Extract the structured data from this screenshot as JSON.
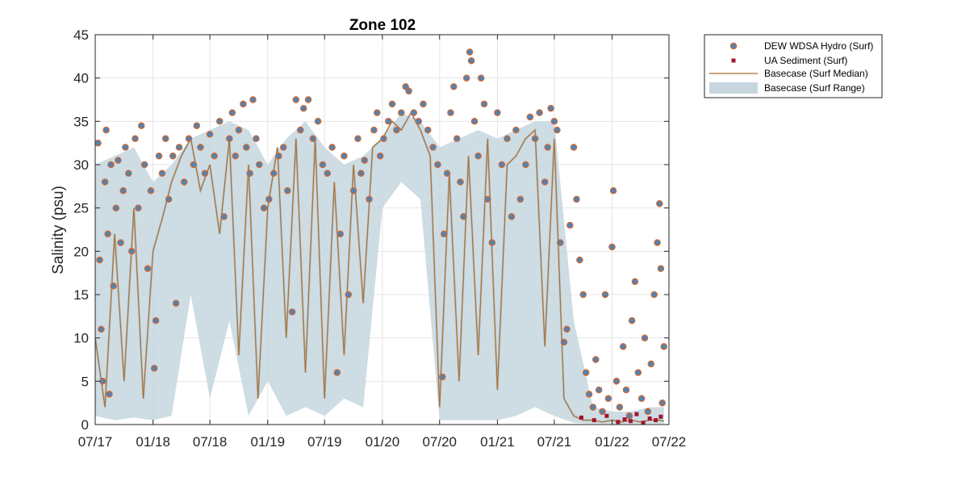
{
  "chart_data": {
    "type": "scatter",
    "title": "Zone 102",
    "xlabel": "",
    "ylabel": "Salinity (psu)",
    "xlim": [
      "2017-07-01",
      "2022-07-01"
    ],
    "ylim": [
      0,
      45
    ],
    "x_ticks": [
      "07/17",
      "01/18",
      "07/18",
      "01/19",
      "07/19",
      "01/20",
      "07/20",
      "01/21",
      "07/21",
      "01/22",
      "07/22"
    ],
    "y_ticks": [
      0,
      5,
      10,
      15,
      20,
      25,
      30,
      35,
      40,
      45
    ],
    "grid": true,
    "legend_position": "outside-top-right",
    "legend": [
      {
        "label": "DEW WDSA Hydro (Surf)",
        "marker": "circle"
      },
      {
        "label": "UA Sediment (Surf)",
        "marker": "square"
      },
      {
        "label": "Basecase (Surf Median)",
        "marker": "line"
      },
      {
        "label": "Basecase (Surf Range)",
        "marker": "patch"
      }
    ],
    "colors": {
      "hydro_face": "#4d84b8",
      "hydro_edge": "#d0672f",
      "sediment": "#a2142f",
      "median": "#a66e2c",
      "range_fill": "#c5d6de",
      "range_gray": "#a7a19b",
      "grid": "#e4e4e4",
      "axes": "#262626"
    },
    "series": [
      {
        "name": "DEW WDSA Hydro (Surf)",
        "style": "scatter",
        "points": [
          [
            "2017-07-10",
            32.5
          ],
          [
            "2017-07-15",
            19
          ],
          [
            "2017-07-20",
            11
          ],
          [
            "2017-07-25",
            5
          ],
          [
            "2017-08-01",
            28
          ],
          [
            "2017-08-05",
            34
          ],
          [
            "2017-08-10",
            22
          ],
          [
            "2017-08-15",
            3.5
          ],
          [
            "2017-08-20",
            30
          ],
          [
            "2017-08-28",
            16
          ],
          [
            "2017-09-05",
            25
          ],
          [
            "2017-09-12",
            30.5
          ],
          [
            "2017-09-20",
            21
          ],
          [
            "2017-09-28",
            27
          ],
          [
            "2017-10-05",
            32
          ],
          [
            "2017-10-15",
            29
          ],
          [
            "2017-10-25",
            20
          ],
          [
            "2017-11-05",
            33
          ],
          [
            "2017-11-15",
            25
          ],
          [
            "2017-11-25",
            34.5
          ],
          [
            "2017-12-05",
            30
          ],
          [
            "2017-12-15",
            18
          ],
          [
            "2017-12-25",
            27
          ],
          [
            "2018-01-05",
            6.5
          ],
          [
            "2018-01-10",
            12
          ],
          [
            "2018-01-20",
            31
          ],
          [
            "2018-01-30",
            29
          ],
          [
            "2018-02-10",
            33
          ],
          [
            "2018-02-20",
            26
          ],
          [
            "2018-03-05",
            31
          ],
          [
            "2018-03-15",
            14
          ],
          [
            "2018-03-25",
            32
          ],
          [
            "2018-04-10",
            28
          ],
          [
            "2018-04-25",
            33
          ],
          [
            "2018-05-10",
            30
          ],
          [
            "2018-05-20",
            34.5
          ],
          [
            "2018-06-01",
            32
          ],
          [
            "2018-06-15",
            29
          ],
          [
            "2018-07-01",
            33.5
          ],
          [
            "2018-07-15",
            31
          ],
          [
            "2018-08-01",
            35
          ],
          [
            "2018-08-15",
            24
          ],
          [
            "2018-09-01",
            33
          ],
          [
            "2018-09-10",
            36
          ],
          [
            "2018-09-20",
            31
          ],
          [
            "2018-10-01",
            34
          ],
          [
            "2018-10-15",
            37
          ],
          [
            "2018-10-25",
            32
          ],
          [
            "2018-11-05",
            29
          ],
          [
            "2018-11-15",
            37.5
          ],
          [
            "2018-11-25",
            33
          ],
          [
            "2018-12-05",
            30
          ],
          [
            "2018-12-20",
            25
          ],
          [
            "2019-01-05",
            26
          ],
          [
            "2019-01-20",
            29
          ],
          [
            "2019-02-05",
            31
          ],
          [
            "2019-02-20",
            32
          ],
          [
            "2019-03-05",
            27
          ],
          [
            "2019-03-20",
            13
          ],
          [
            "2019-04-01",
            37.5
          ],
          [
            "2019-04-15",
            34
          ],
          [
            "2019-04-25",
            36.5
          ],
          [
            "2019-05-10",
            37.5
          ],
          [
            "2019-05-25",
            33
          ],
          [
            "2019-06-10",
            35
          ],
          [
            "2019-06-25",
            30
          ],
          [
            "2019-07-10",
            29
          ],
          [
            "2019-07-25",
            32
          ],
          [
            "2019-08-10",
            6
          ],
          [
            "2019-08-20",
            22
          ],
          [
            "2019-09-01",
            31
          ],
          [
            "2019-09-15",
            15
          ],
          [
            "2019-10-01",
            27
          ],
          [
            "2019-10-15",
            33
          ],
          [
            "2019-10-25",
            29
          ],
          [
            "2019-11-05",
            30.5
          ],
          [
            "2019-11-20",
            26
          ],
          [
            "2019-12-05",
            34
          ],
          [
            "2019-12-15",
            36
          ],
          [
            "2019-12-25",
            31
          ],
          [
            "2020-01-05",
            33
          ],
          [
            "2020-01-20",
            35
          ],
          [
            "2020-02-01",
            37
          ],
          [
            "2020-02-15",
            34
          ],
          [
            "2020-03-01",
            36
          ],
          [
            "2020-03-15",
            39
          ],
          [
            "2020-03-25",
            38.5
          ],
          [
            "2020-04-10",
            36
          ],
          [
            "2020-04-25",
            35
          ],
          [
            "2020-05-10",
            37
          ],
          [
            "2020-05-25",
            34
          ],
          [
            "2020-06-10",
            32
          ],
          [
            "2020-06-25",
            30
          ],
          [
            "2020-07-10",
            5.5
          ],
          [
            "2020-07-15",
            22
          ],
          [
            "2020-07-25",
            29
          ],
          [
            "2020-08-05",
            36
          ],
          [
            "2020-08-15",
            39
          ],
          [
            "2020-08-25",
            33
          ],
          [
            "2020-09-05",
            28
          ],
          [
            "2020-09-15",
            24
          ],
          [
            "2020-09-25",
            40
          ],
          [
            "2020-10-05",
            43
          ],
          [
            "2020-10-10",
            42
          ],
          [
            "2020-10-20",
            35
          ],
          [
            "2020-11-01",
            31
          ],
          [
            "2020-11-10",
            40
          ],
          [
            "2020-11-20",
            37
          ],
          [
            "2020-12-01",
            26
          ],
          [
            "2020-12-15",
            21
          ],
          [
            "2021-01-01",
            36
          ],
          [
            "2021-01-15",
            30
          ],
          [
            "2021-02-01",
            33
          ],
          [
            "2021-02-15",
            24
          ],
          [
            "2021-03-01",
            34
          ],
          [
            "2021-03-15",
            26
          ],
          [
            "2021-04-01",
            30
          ],
          [
            "2021-04-15",
            35.5
          ],
          [
            "2021-05-01",
            33
          ],
          [
            "2021-05-15",
            36
          ],
          [
            "2021-06-01",
            28
          ],
          [
            "2021-06-10",
            32
          ],
          [
            "2021-06-20",
            36.5
          ],
          [
            "2021-07-01",
            35
          ],
          [
            "2021-07-10",
            34
          ],
          [
            "2021-07-20",
            21
          ],
          [
            "2021-08-01",
            9.5
          ],
          [
            "2021-08-10",
            11
          ],
          [
            "2021-08-20",
            23
          ],
          [
            "2021-09-01",
            32
          ],
          [
            "2021-09-10",
            26
          ],
          [
            "2021-09-20",
            19
          ],
          [
            "2021-10-01",
            15
          ],
          [
            "2021-10-10",
            6
          ],
          [
            "2021-10-20",
            3.5
          ],
          [
            "2021-11-01",
            2
          ],
          [
            "2021-11-10",
            7.5
          ],
          [
            "2021-11-20",
            4
          ],
          [
            "2021-12-01",
            1.5
          ],
          [
            "2021-12-10",
            15
          ],
          [
            "2021-12-20",
            3
          ],
          [
            "2022-01-01",
            20.5
          ],
          [
            "2022-01-05",
            27
          ],
          [
            "2022-01-15",
            5
          ],
          [
            "2022-01-25",
            2
          ],
          [
            "2022-02-05",
            9
          ],
          [
            "2022-02-15",
            4
          ],
          [
            "2022-02-25",
            1
          ],
          [
            "2022-03-05",
            12
          ],
          [
            "2022-03-15",
            16.5
          ],
          [
            "2022-03-25",
            6
          ],
          [
            "2022-04-05",
            3
          ],
          [
            "2022-04-15",
            10
          ],
          [
            "2022-04-25",
            1.5
          ],
          [
            "2022-05-05",
            7
          ],
          [
            "2022-05-15",
            15
          ],
          [
            "2022-05-25",
            21
          ],
          [
            "2022-06-01",
            25.5
          ],
          [
            "2022-06-05",
            18
          ],
          [
            "2022-06-10",
            2.5
          ],
          [
            "2022-06-15",
            9
          ]
        ]
      },
      {
        "name": "UA Sediment (Surf)",
        "style": "scatter",
        "points": [
          [
            "2021-09-25",
            0.8
          ],
          [
            "2021-11-05",
            0.5
          ],
          [
            "2021-12-15",
            1.0
          ],
          [
            "2022-01-20",
            0.3
          ],
          [
            "2022-02-10",
            0.6
          ],
          [
            "2022-03-01",
            0.4
          ],
          [
            "2022-03-20",
            1.2
          ],
          [
            "2022-04-10",
            0.2
          ],
          [
            "2022-05-01",
            0.7
          ],
          [
            "2022-05-20",
            0.5
          ],
          [
            "2022-06-05",
            0.9
          ]
        ]
      },
      {
        "name": "Basecase (Surf Median)",
        "style": "line",
        "points": [
          [
            "2017-07-01",
            10
          ],
          [
            "2017-08-01",
            2
          ],
          [
            "2017-09-01",
            22
          ],
          [
            "2017-10-01",
            5
          ],
          [
            "2017-11-01",
            25
          ],
          [
            "2017-12-01",
            3
          ],
          [
            "2018-01-01",
            20
          ],
          [
            "2018-02-01",
            24
          ],
          [
            "2018-03-01",
            28
          ],
          [
            "2018-04-01",
            31
          ],
          [
            "2018-05-01",
            33
          ],
          [
            "2018-06-01",
            27
          ],
          [
            "2018-07-01",
            30
          ],
          [
            "2018-08-01",
            22
          ],
          [
            "2018-09-01",
            33
          ],
          [
            "2018-10-01",
            8
          ],
          [
            "2018-11-01",
            30
          ],
          [
            "2018-12-01",
            3
          ],
          [
            "2019-01-01",
            25
          ],
          [
            "2019-02-01",
            32
          ],
          [
            "2019-03-01",
            10
          ],
          [
            "2019-04-01",
            33
          ],
          [
            "2019-05-01",
            6
          ],
          [
            "2019-06-01",
            33
          ],
          [
            "2019-07-01",
            3
          ],
          [
            "2019-08-01",
            28
          ],
          [
            "2019-09-01",
            8
          ],
          [
            "2019-10-01",
            30
          ],
          [
            "2019-11-01",
            14
          ],
          [
            "2019-12-01",
            32
          ],
          [
            "2020-01-01",
            33
          ],
          [
            "2020-02-01",
            35
          ],
          [
            "2020-03-01",
            34
          ],
          [
            "2020-04-01",
            36
          ],
          [
            "2020-05-01",
            34
          ],
          [
            "2020-06-01",
            31
          ],
          [
            "2020-07-01",
            2
          ],
          [
            "2020-08-01",
            29
          ],
          [
            "2020-09-01",
            5
          ],
          [
            "2020-10-01",
            31
          ],
          [
            "2020-11-01",
            8
          ],
          [
            "2020-12-01",
            33
          ],
          [
            "2021-01-01",
            4
          ],
          [
            "2021-02-01",
            30
          ],
          [
            "2021-03-01",
            31
          ],
          [
            "2021-04-01",
            33
          ],
          [
            "2021-05-01",
            34
          ],
          [
            "2021-06-01",
            9
          ],
          [
            "2021-07-01",
            33
          ],
          [
            "2021-08-01",
            3
          ],
          [
            "2021-09-01",
            1
          ],
          [
            "2021-10-01",
            0.5
          ],
          [
            "2021-11-01",
            0.5
          ],
          [
            "2021-12-01",
            0.3
          ],
          [
            "2022-01-01",
            0.5
          ],
          [
            "2022-02-01",
            0.3
          ],
          [
            "2022-03-01",
            0.5
          ],
          [
            "2022-04-01",
            0.3
          ],
          [
            "2022-05-01",
            0.5
          ],
          [
            "2022-06-01",
            0.5
          ],
          [
            "2022-06-15",
            0.4
          ]
        ]
      },
      {
        "name": "Basecase (Surf Range)",
        "style": "band",
        "x": [
          "2017-07-01",
          "2017-09-01",
          "2017-11-01",
          "2018-01-01",
          "2018-03-01",
          "2018-05-01",
          "2018-07-01",
          "2018-09-01",
          "2018-11-01",
          "2019-01-01",
          "2019-03-01",
          "2019-05-01",
          "2019-07-01",
          "2019-09-01",
          "2019-11-01",
          "2020-01-01",
          "2020-03-01",
          "2020-05-01",
          "2020-07-01",
          "2020-09-01",
          "2020-11-01",
          "2021-01-01",
          "2021-03-01",
          "2021-05-01",
          "2021-07-01",
          "2021-09-01",
          "2021-11-01",
          "2022-01-01",
          "2022-03-01",
          "2022-05-01",
          "2022-06-15"
        ],
        "lower": [
          1,
          0.5,
          0.8,
          0.5,
          1,
          15,
          3,
          12,
          1,
          5,
          1,
          2,
          1,
          3,
          2,
          25,
          28,
          26,
          0.5,
          0.5,
          0.5,
          0.5,
          1,
          2,
          1,
          0.2,
          0.1,
          0.1,
          0.1,
          0.1,
          0.1
        ],
        "upper": [
          30,
          31,
          32,
          28,
          30,
          33,
          34,
          35,
          34,
          30,
          33,
          35,
          32,
          30,
          31,
          33,
          36,
          35,
          32,
          33,
          34,
          33,
          34,
          35,
          35,
          12,
          2,
          1.5,
          1.5,
          2,
          2
        ]
      }
    ]
  }
}
